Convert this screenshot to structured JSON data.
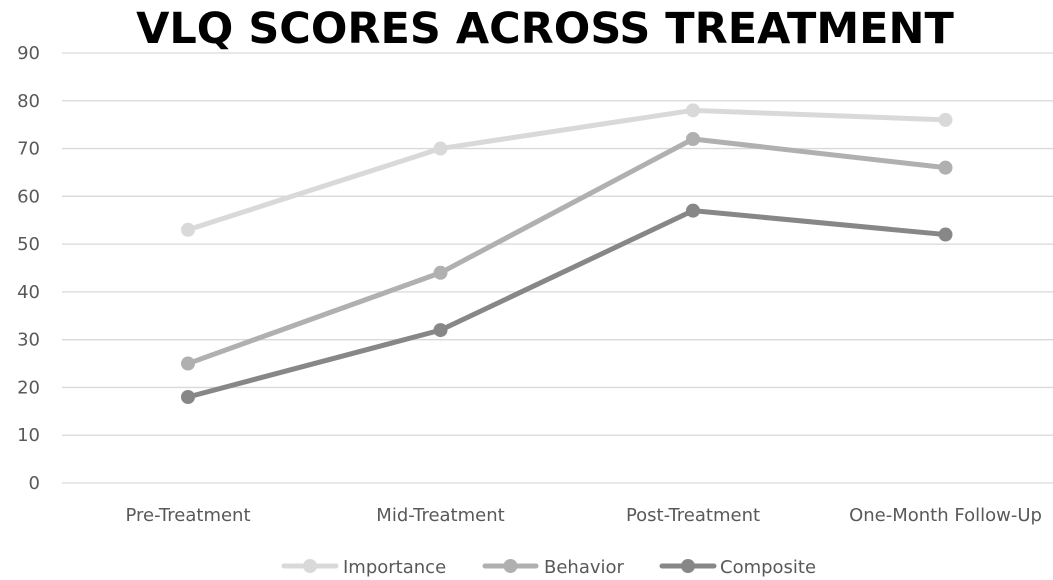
{
  "chart_data": {
    "type": "line",
    "title": "VLQ SCORES ACROSS TREATMENT",
    "xlabel": "",
    "ylabel": "",
    "categories": [
      "Pre-Treatment",
      "Mid-Treatment",
      "Post-Treatment",
      "One-Month Follow-Up"
    ],
    "ylim": [
      0,
      90
    ],
    "yticks": [
      "0",
      "10",
      "20",
      "30",
      "40",
      "50",
      "60",
      "70",
      "80",
      "90"
    ],
    "grid": true,
    "legend_position": "bottom",
    "series": [
      {
        "name": "Importance",
        "values": [
          53,
          70,
          78,
          76
        ],
        "color": "#d9d9d9"
      },
      {
        "name": "Behavior",
        "values": [
          25,
          44,
          72,
          66
        ],
        "color": "#b0b0b0"
      },
      {
        "name": "Composite",
        "values": [
          18,
          32,
          57,
          52
        ],
        "color": "#878787"
      }
    ]
  },
  "colors": {
    "gridline": "#d9d9d9",
    "tick_text": "#595959"
  }
}
